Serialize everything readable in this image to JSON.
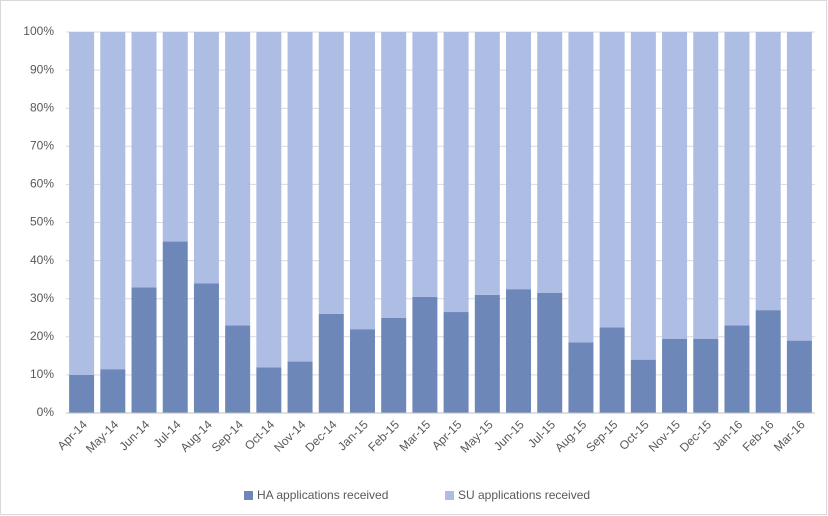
{
  "chart_data": {
    "type": "stacked_bar",
    "categories": [
      "Apr-14",
      "May-14",
      "Jun-14",
      "Jul-14",
      "Aug-14",
      "Sep-14",
      "Oct-14",
      "Nov-14",
      "Dec-14",
      "Jan-15",
      "Feb-15",
      "Mar-15",
      "Apr-15",
      "May-15",
      "Jun-15",
      "Jul-15",
      "Aug-15",
      "Sep-15",
      "Oct-15",
      "Nov-15",
      "Dec-15",
      "Jan-16",
      "Feb-16",
      "Mar-16"
    ],
    "series": [
      {
        "name": "HA applications received",
        "color": "#6d87b8",
        "values": [
          10,
          11.5,
          33,
          45,
          34,
          23,
          12,
          13.5,
          26,
          22,
          25,
          30.5,
          26.5,
          31,
          32.5,
          31.5,
          18.5,
          22.5,
          14,
          19.5,
          19.5,
          23,
          27,
          19
        ]
      },
      {
        "name": "SU applications received",
        "color": "#adbde3",
        "values": [
          90,
          88.5,
          67,
          55,
          66,
          77,
          88,
          86.5,
          74,
          78,
          75,
          69.5,
          73.5,
          69,
          67.5,
          68.5,
          81.5,
          77.5,
          86,
          80.5,
          80.5,
          77,
          73,
          81
        ]
      }
    ],
    "ylim": [
      0,
      100
    ],
    "yticks": [
      {
        "value": 0,
        "label": "0%"
      },
      {
        "value": 10,
        "label": "10%"
      },
      {
        "value": 20,
        "label": "20%"
      },
      {
        "value": 30,
        "label": "30%"
      },
      {
        "value": 40,
        "label": "40%"
      },
      {
        "value": 50,
        "label": "50%"
      },
      {
        "value": 60,
        "label": "60%"
      },
      {
        "value": 70,
        "label": "70%"
      },
      {
        "value": 80,
        "label": "80%"
      },
      {
        "value": 90,
        "label": "90%"
      },
      {
        "value": 100,
        "label": "100%"
      }
    ],
    "grid": true,
    "legend": "bottom"
  }
}
